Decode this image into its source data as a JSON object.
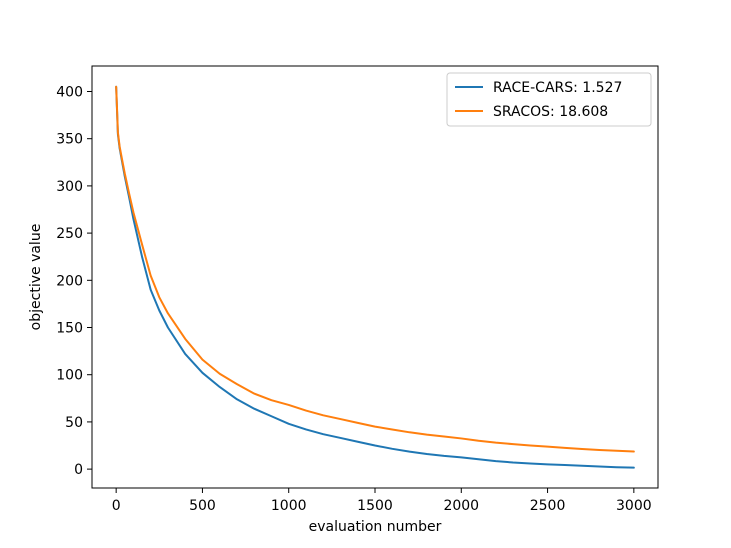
{
  "chart_data": {
    "type": "line",
    "title": "",
    "xlabel": "evaluation number",
    "ylabel": "objective value",
    "xlim": [
      -140,
      3140
    ],
    "ylim": [
      -20,
      427
    ],
    "xticks": [
      0,
      500,
      1000,
      1500,
      2000,
      2500,
      3000
    ],
    "yticks": [
      0,
      50,
      100,
      150,
      200,
      250,
      300,
      350,
      400
    ],
    "grid": false,
    "legend_position": "top-right",
    "series": [
      {
        "name": "RACE-CARS: 1.527",
        "color": "#1f77b4",
        "x": [
          0,
          5,
          10,
          20,
          30,
          50,
          75,
          100,
          150,
          200,
          250,
          300,
          400,
          500,
          600,
          700,
          800,
          900,
          1000,
          1100,
          1200,
          1300,
          1400,
          1500,
          1600,
          1700,
          1800,
          1900,
          2000,
          2100,
          2200,
          2300,
          2400,
          2500,
          2600,
          2700,
          2800,
          2900,
          3000
        ],
        "y": [
          405,
          380,
          355,
          340,
          330,
          310,
          288,
          265,
          225,
          190,
          168,
          150,
          122,
          102,
          87,
          74,
          64,
          56,
          48,
          42,
          37,
          33,
          29,
          25,
          21.5,
          18.5,
          16,
          14,
          12.5,
          10.5,
          8.5,
          7,
          6,
          5,
          4.3,
          3.5,
          2.8,
          2,
          1.527
        ]
      },
      {
        "name": "SRACOS: 18.608",
        "color": "#ff7f0e",
        "x": [
          0,
          5,
          10,
          20,
          30,
          50,
          75,
          100,
          150,
          200,
          250,
          300,
          400,
          500,
          600,
          700,
          800,
          900,
          1000,
          1100,
          1200,
          1300,
          1400,
          1500,
          1600,
          1700,
          1800,
          1900,
          2000,
          2100,
          2200,
          2300,
          2400,
          2500,
          2600,
          2700,
          2800,
          2900,
          3000
        ],
        "y": [
          405,
          382,
          357,
          342,
          332,
          313,
          292,
          272,
          238,
          205,
          182,
          165,
          138,
          116,
          101,
          90,
          80,
          73,
          68,
          62,
          57,
          53,
          49,
          45,
          42,
          39,
          36.5,
          34.5,
          32.5,
          30,
          28,
          26.5,
          25,
          23.8,
          22.5,
          21.3,
          20.3,
          19.5,
          18.608
        ]
      }
    ]
  }
}
